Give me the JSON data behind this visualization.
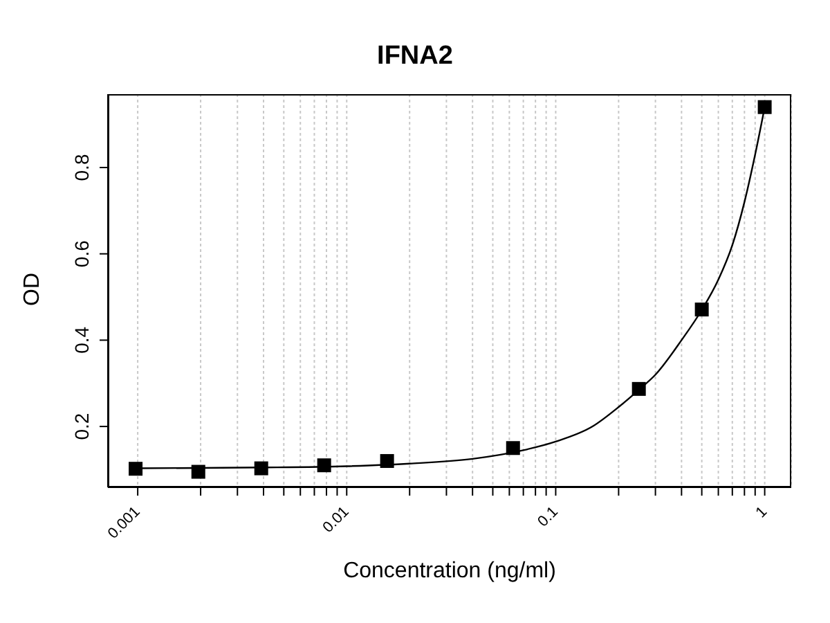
{
  "chart_data": {
    "type": "scatter",
    "title": "IFNA2",
    "xlabel": "Concentration (ng/ml)",
    "ylabel": "OD",
    "log": "x",
    "grid": "x",
    "marker": "square",
    "xlim": [
      0.00072,
      1.34
    ],
    "ylim": [
      0.059,
      0.97
    ],
    "xticks": [
      0.001,
      {
        "value": 0.002,
        "label": null
      },
      {
        "value": 0.003,
        "label": null
      },
      {
        "value": 0.004,
        "label": null
      },
      {
        "value": 0.005,
        "label": null
      },
      {
        "value": 0.006,
        "label": null
      },
      {
        "value": 0.007,
        "label": null
      },
      {
        "value": 0.008,
        "label": null
      },
      {
        "value": 0.009,
        "label": null
      },
      0.01,
      {
        "value": 0.02,
        "label": null
      },
      {
        "value": 0.03,
        "label": null
      },
      {
        "value": 0.04,
        "label": null
      },
      {
        "value": 0.05,
        "label": null
      },
      {
        "value": 0.06,
        "label": null
      },
      {
        "value": 0.07,
        "label": null
      },
      {
        "value": 0.08,
        "label": null
      },
      {
        "value": 0.09,
        "label": null
      },
      0.1,
      {
        "value": 0.2,
        "label": null
      },
      {
        "value": 0.3,
        "label": null
      },
      {
        "value": 0.4,
        "label": null
      },
      {
        "value": 0.5,
        "label": null
      },
      {
        "value": 0.6,
        "label": null
      },
      {
        "value": 0.7,
        "label": null
      },
      {
        "value": 0.8,
        "label": null
      },
      {
        "value": 0.9,
        "label": null
      },
      1
    ],
    "yticks": [
      0.2,
      0.4,
      0.6,
      0.8
    ],
    "series": [
      {
        "color": "#000000",
        "x": [
          0.000977,
          0.00195,
          0.0039,
          0.0078,
          0.0156,
          0.0625,
          0.25,
          0.5,
          1
        ],
        "values": [
          0.102,
          0.095,
          0.103,
          0.11,
          0.12,
          0.15,
          0.287,
          0.471,
          0.94
        ]
      },
      {
        "type": "line",
        "color": "#000000",
        "marker": "none",
        "line_style": "solid",
        "x": [
          0.000977,
          0.002,
          0.004,
          0.01,
          0.02,
          0.04,
          0.07,
          0.1,
          0.15,
          0.2,
          0.25,
          0.3,
          0.4,
          0.5,
          0.6,
          0.7,
          0.8,
          0.9,
          1
        ],
        "values": [
          0.103,
          0.104,
          0.105,
          0.108,
          0.114,
          0.125,
          0.145,
          0.165,
          0.2,
          0.245,
          0.285,
          0.32,
          0.4,
          0.47,
          0.54,
          0.62,
          0.72,
          0.83,
          0.94
        ]
      }
    ]
  }
}
